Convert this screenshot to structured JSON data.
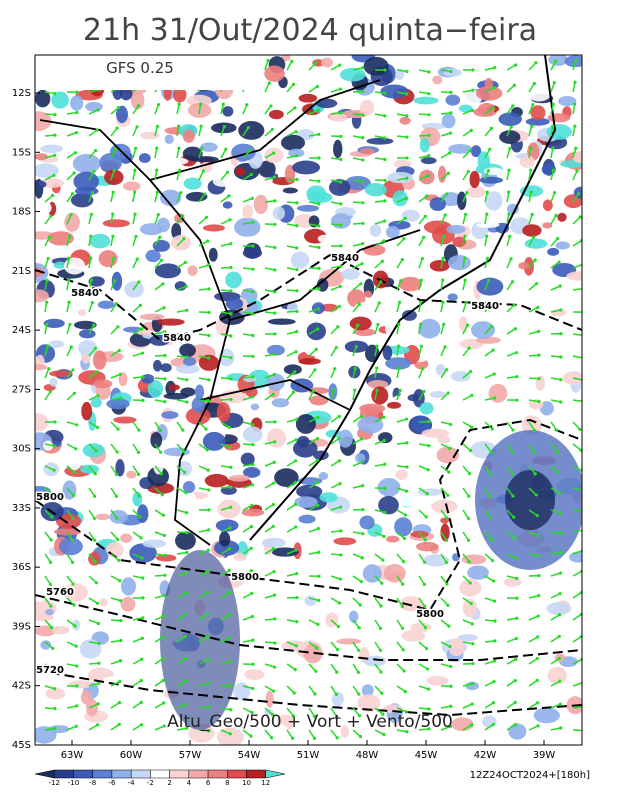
{
  "header": {
    "title": "21h 31/Out/2024 quinta−feira",
    "model": "GFS 0.25"
  },
  "map": {
    "lat_ticks": [
      "12S",
      "15S",
      "18S",
      "21S",
      "24S",
      "27S",
      "30S",
      "33S",
      "36S",
      "39S",
      "42S",
      "45S"
    ],
    "lon_ticks": [
      "63W",
      "60W",
      "57W",
      "54W",
      "51W",
      "48W",
      "45W",
      "42W",
      "39W"
    ],
    "contour_labels": [
      "5840",
      "5840",
      "5840",
      "5840",
      "5800",
      "5800",
      "5800",
      "5760",
      "5720"
    ],
    "caption": "Altu_Geo/500 + Vort + Vento/500"
  },
  "colorbar": {
    "ticks": [
      -12,
      -10,
      -8,
      -6,
      -4,
      -2,
      2,
      4,
      6,
      8,
      10,
      12
    ],
    "colors": [
      "#1b2c5e",
      "#2a3f8a",
      "#3a5cb8",
      "#5a7fd4",
      "#8fb0ea",
      "#c6d8f5",
      "#ffffff",
      "#f9d3d3",
      "#f3a9a9",
      "#ec7f7f",
      "#e04b4b",
      "#b81f1f",
      "#4fe0d8"
    ]
  },
  "footer": "12Z24OCT2024+[180h]"
}
